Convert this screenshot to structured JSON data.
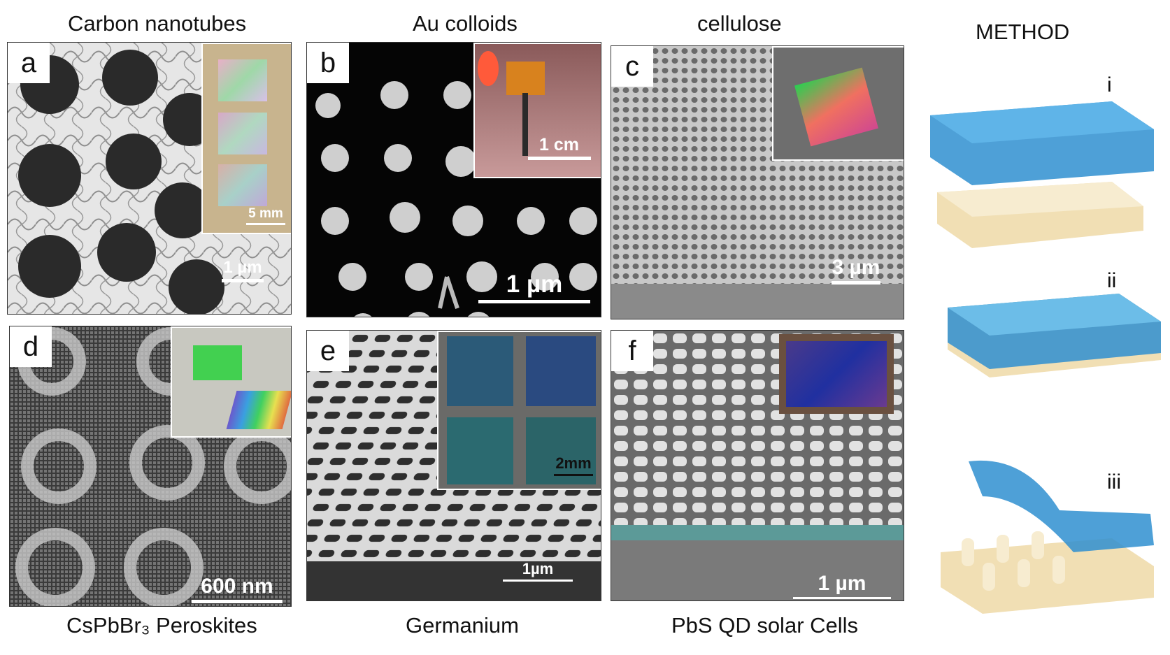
{
  "columns": {
    "col1_top": "Carbon nanotubes",
    "col2_top": "Au colloids",
    "col3_top": "cellulose",
    "col4_top": "METHOD",
    "col1_bottom": "CsPbBr₃ Peroskites",
    "col2_bottom": "Germanium",
    "col3_bottom": "PbS QD solar Cells"
  },
  "panels": [
    {
      "letter": "a",
      "scale": "1 µm",
      "inset_scale": "5 mm"
    },
    {
      "letter": "b",
      "scale": "1 µm",
      "inset_scale": "1 cm"
    },
    {
      "letter": "c",
      "scale": "3 µm"
    },
    {
      "letter": "d",
      "scale": "600 nm"
    },
    {
      "letter": "e",
      "scale": "1µm",
      "inset_scale": "2mm"
    },
    {
      "letter": "f",
      "scale": "1 µm"
    }
  ],
  "method_steps": [
    "i",
    "ii",
    "iii"
  ],
  "colors": {
    "stamp_blue": "#2f8fd0",
    "substrate": "#f1dfb4"
  }
}
